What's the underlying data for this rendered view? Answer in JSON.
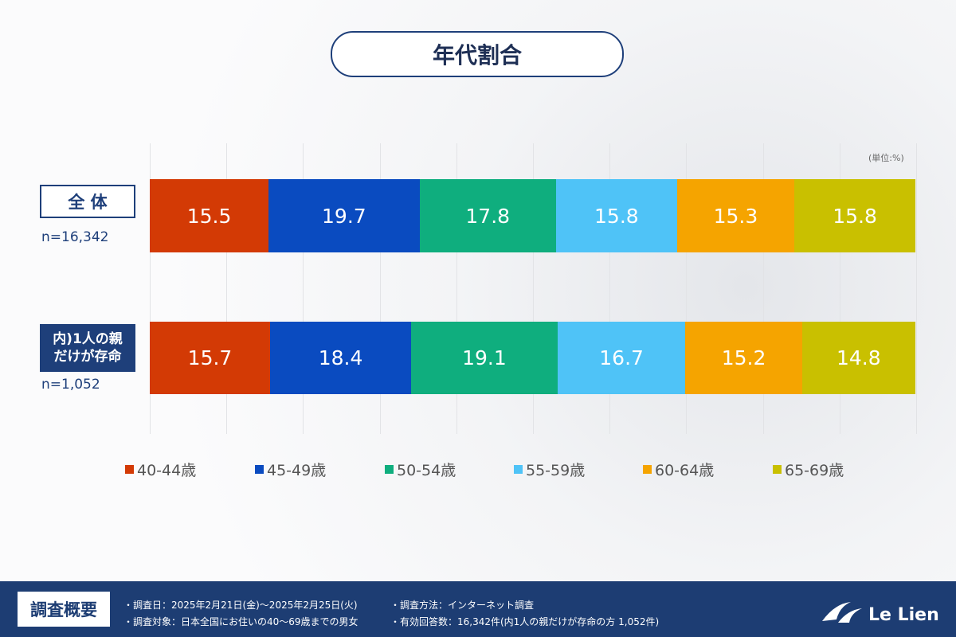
{
  "chart_data": {
    "type": "bar",
    "orientation": "horizontal",
    "stacked": true,
    "title": "年代割合",
    "unit_label": "(単位:%)",
    "categories": [
      "全 体",
      "内)1人の親\nだけが存命"
    ],
    "sample_sizes": [
      "n=16,342",
      "n=1,052"
    ],
    "series": [
      {
        "name": "40-44歳",
        "color": "#d33a05",
        "values": [
          15.5,
          15.7
        ]
      },
      {
        "name": "45-49歳",
        "color": "#0a4bc0",
        "values": [
          19.7,
          18.4
        ]
      },
      {
        "name": "50-54歳",
        "color": "#0fae7e",
        "values": [
          17.8,
          19.1
        ]
      },
      {
        "name": "55-59歳",
        "color": "#4fc3f7",
        "values": [
          15.8,
          16.7
        ]
      },
      {
        "name": "60-64歳",
        "color": "#f5a400",
        "values": [
          15.3,
          15.2
        ]
      },
      {
        "name": "65-69歳",
        "color": "#c9c000",
        "values": [
          15.8,
          14.8
        ]
      }
    ],
    "xlim": [
      0,
      100
    ],
    "xticks": [
      0,
      10,
      20,
      30,
      40,
      50,
      60,
      70,
      80,
      90,
      100
    ],
    "grid": true
  },
  "footer": {
    "heading": "調査概要",
    "items": [
      "・調査日：2025年2月21日(金)～2025年2月25日(火)",
      "・調査方法：インターネット調査",
      "・調査対象：日本全国にお住いの40～69歳までの男女",
      "・有効回答数：16,342件(内1人の親だけが存命の方 1,052件)"
    ],
    "logo": "Le Lien"
  }
}
